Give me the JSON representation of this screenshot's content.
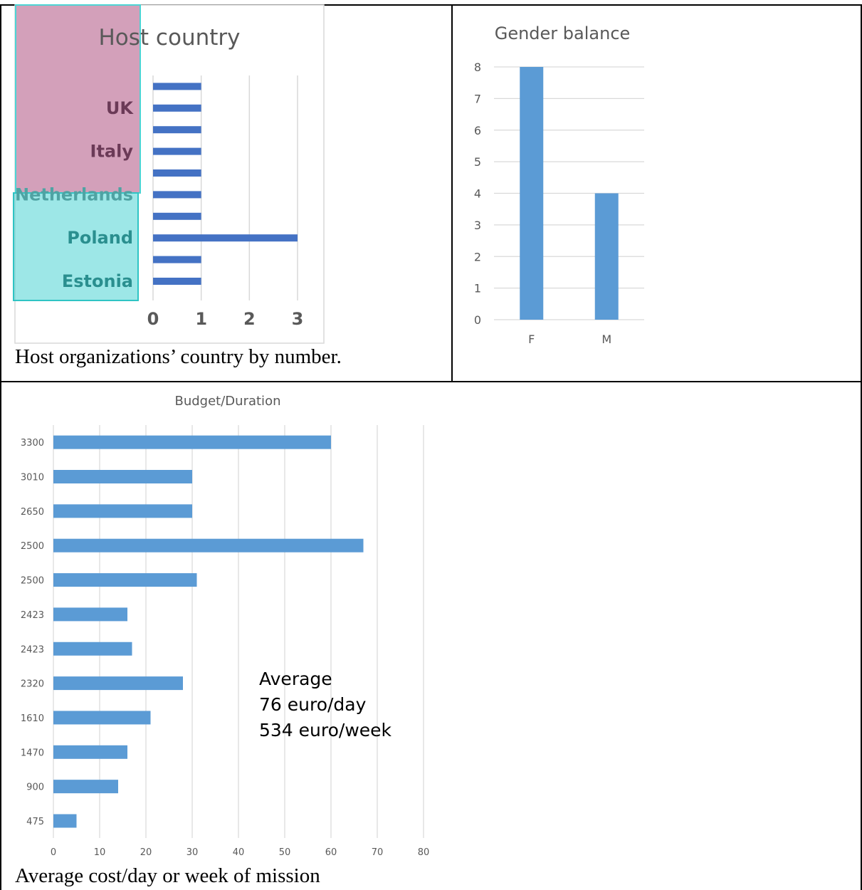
{
  "captions": {
    "host_country": "Host organizations’ country by number.",
    "budget": "Average cost/day or week of mission"
  },
  "colors": {
    "host_bar": "#4472c4",
    "chart_bar": "#5b9bd5",
    "grid": "#d9d9d9",
    "label_gray": "#595959",
    "highlight_pink": "#c27ba0",
    "highlight_teal": "#4dd4d4"
  },
  "chart_data": [
    {
      "type": "bar",
      "orientation": "horizontal",
      "title": "Host country",
      "categories": [
        "Estonia",
        "",
        "Poland",
        "",
        "Netherlands",
        "",
        "Italy",
        "",
        "UK",
        ""
      ],
      "values": [
        1,
        1,
        3,
        1,
        1,
        1,
        1,
        1,
        1,
        1
      ],
      "xlim": [
        0,
        3
      ],
      "xticks": [
        0,
        1,
        2,
        3
      ],
      "grid": true,
      "legend": "none"
    },
    {
      "type": "bar",
      "title": "Gender balance",
      "categories": [
        "F",
        "M"
      ],
      "values": [
        8,
        4
      ],
      "ylim": [
        0,
        8
      ],
      "yticks": [
        0,
        1,
        2,
        3,
        4,
        5,
        6,
        7,
        8
      ],
      "grid": true,
      "legend": "none"
    },
    {
      "type": "bar",
      "orientation": "horizontal",
      "title": "Budget/Duration",
      "categories": [
        "475",
        "900",
        "1470",
        "1610",
        "2320",
        "2423",
        "2423",
        "2500",
        "2500",
        "2650",
        "3010",
        "3300"
      ],
      "values": [
        5,
        14,
        16,
        21,
        28,
        17,
        16,
        31,
        67,
        30,
        30,
        60
      ],
      "xlim": [
        0,
        80
      ],
      "xticks": [
        0,
        10,
        20,
        30,
        40,
        50,
        60,
        70,
        80
      ],
      "grid": true,
      "legend": "none",
      "annotation": [
        "Average",
        "76 euro/day",
        "534 euro/week"
      ]
    }
  ]
}
